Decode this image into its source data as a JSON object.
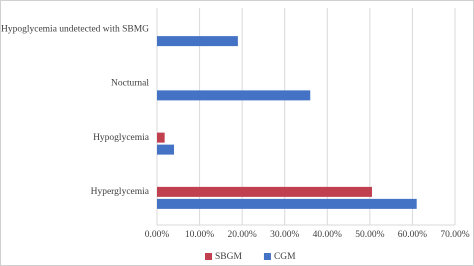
{
  "chart_data": {
    "type": "bar",
    "orientation": "horizontal",
    "categories": [
      "Hypoglycemia undetected with SBMG",
      "Nocturnal",
      "Hypoglycemia",
      "Hyperglycemia"
    ],
    "series": [
      {
        "name": "SBGM",
        "color": "#c0404f",
        "values": [
          null,
          null,
          1.8,
          50.5
        ]
      },
      {
        "name": "CGM",
        "color": "#4472c4",
        "values": [
          19,
          36,
          4,
          61
        ]
      }
    ],
    "xlim": [
      0,
      70
    ],
    "xticks": [
      {
        "value": 0,
        "label": "0.00%"
      },
      {
        "value": 10,
        "label": "10.00%"
      },
      {
        "value": 20,
        "label": "20.00%"
      },
      {
        "value": 30,
        "label": "30.00%"
      },
      {
        "value": 40,
        "label": "40.00%"
      },
      {
        "value": 50,
        "label": "50.00%"
      },
      {
        "value": 60,
        "label": "60.00%"
      },
      {
        "value": 70,
        "label": "70.00%"
      }
    ],
    "grid": true,
    "legend": "bottom"
  }
}
